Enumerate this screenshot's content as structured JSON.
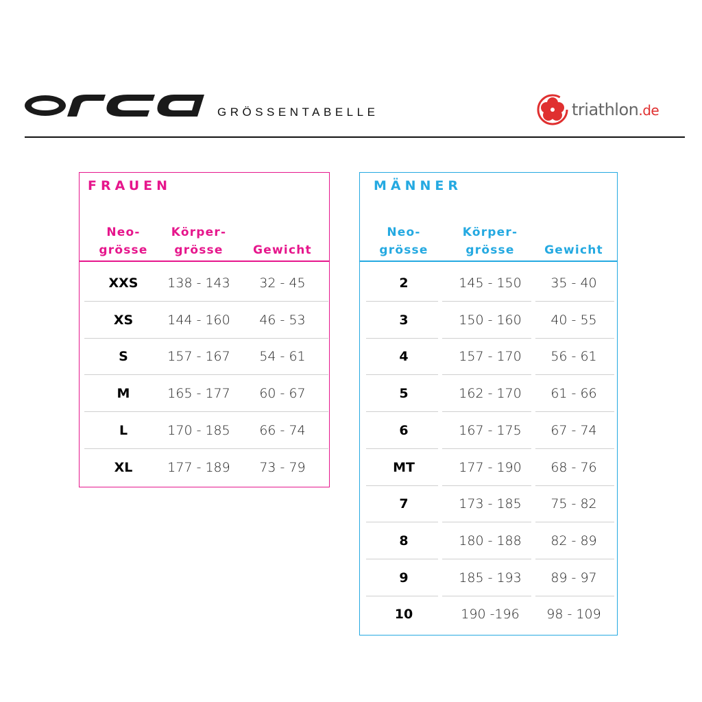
{
  "header": {
    "brand": "orca",
    "title": "GRÖSSENTABELLE",
    "partner_logo": {
      "name": "triathlon",
      "suffix": ".de",
      "icon": "hibiscus-icon"
    }
  },
  "colors": {
    "frauen": "#e6168c",
    "maenner": "#24a9e1"
  },
  "frauen": {
    "title": "FRAUEN",
    "columns": [
      [
        "Neo-",
        "grösse"
      ],
      [
        "Körper-",
        "grösse"
      ],
      [
        "",
        "Gewicht"
      ]
    ],
    "rows": [
      [
        "XXS",
        "138 - 143",
        "32 - 45"
      ],
      [
        "XS",
        "144 - 160",
        "46 - 53"
      ],
      [
        "S",
        "157 - 167",
        "54 - 61"
      ],
      [
        "M",
        "165 - 177",
        "60 - 67"
      ],
      [
        "L",
        "170 - 185",
        "66 - 74"
      ],
      [
        "XL",
        "177 - 189",
        "73 - 79"
      ]
    ]
  },
  "maenner": {
    "title": "MÄNNER",
    "columns": [
      [
        "Neo-",
        "grösse"
      ],
      [
        "Körper-",
        "grösse"
      ],
      [
        "",
        "Gewicht"
      ]
    ],
    "rows": [
      [
        "2",
        "145 - 150",
        "35 - 40"
      ],
      [
        "3",
        "150 - 160",
        "40 - 55"
      ],
      [
        "4",
        "157 - 170",
        "56 - 61"
      ],
      [
        "5",
        "162 - 170",
        "61 - 66"
      ],
      [
        "6",
        "167 - 175",
        "67 - 74"
      ],
      [
        "MT",
        "177 - 190",
        "68 - 76"
      ],
      [
        "7",
        "173 - 185",
        "75 - 82"
      ],
      [
        "8",
        "180 - 188",
        "82 - 89"
      ],
      [
        "9",
        "185 - 193",
        "89 - 97"
      ],
      [
        "10",
        "190 -196",
        "98 - 109"
      ]
    ]
  }
}
